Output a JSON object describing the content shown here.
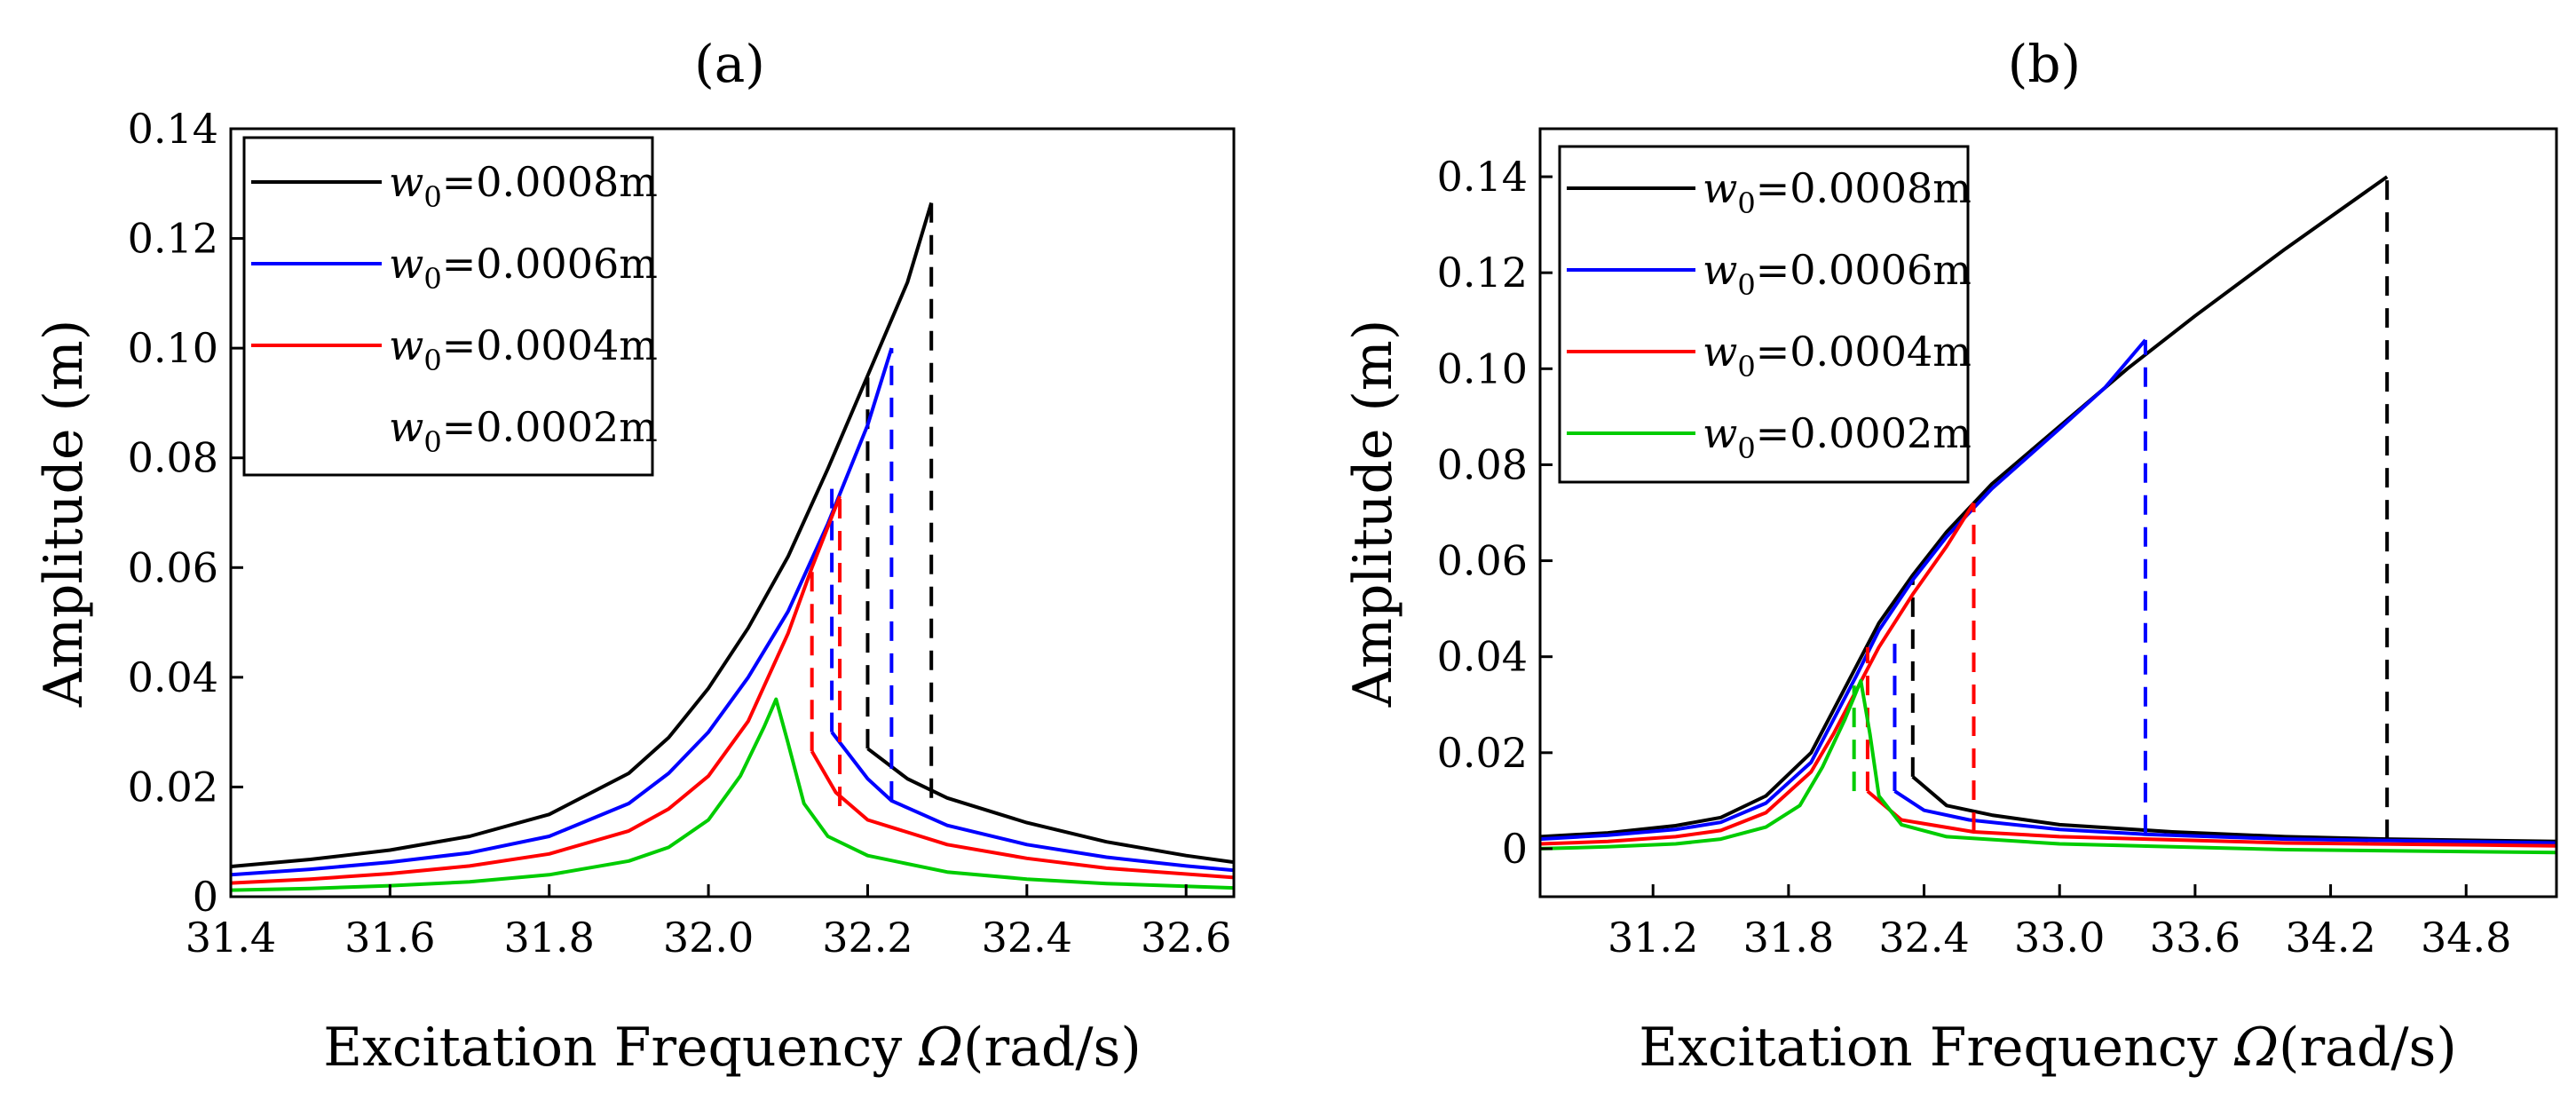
{
  "chart_data": [
    {
      "panel": "a",
      "type": "line",
      "title": "(a)",
      "xlabel_prefix": "Excitation Frequency ",
      "xlabel_symbol": "Ω",
      "xlabel_suffix": "(rad/s)",
      "ylabel": "Amplitude (m)",
      "xlim": [
        31.4,
        32.66
      ],
      "ylim": [
        0,
        0.14
      ],
      "xticks": [
        31.4,
        31.6,
        31.8,
        32.0,
        32.2,
        32.4,
        32.6
      ],
      "xtick_labels": [
        "31.4",
        "31.6",
        "31.8",
        "32.0",
        "32.2",
        "32.4",
        "32.6"
      ],
      "yticks": [
        0,
        0.02,
        0.04,
        0.06,
        0.08,
        0.1,
        0.12,
        0.14
      ],
      "ytick_labels": [
        "0",
        "0.02",
        "0.04",
        "0.06",
        "0.08",
        "0.10",
        "0.12",
        "0.14"
      ],
      "legend_position": "top-left",
      "series": [
        {
          "name": "w0=0.0008m",
          "label_var": "w",
          "label_sub": "0",
          "label_val": "=0.0008m",
          "color": "#000000",
          "upper": [
            [
              31.4,
              0.0055
            ],
            [
              31.5,
              0.0068
            ],
            [
              31.6,
              0.0085
            ],
            [
              31.7,
              0.011
            ],
            [
              31.8,
              0.015
            ],
            [
              31.9,
              0.0225
            ],
            [
              31.95,
              0.029
            ],
            [
              32.0,
              0.038
            ],
            [
              32.05,
              0.049
            ],
            [
              32.1,
              0.062
            ],
            [
              32.15,
              0.078
            ],
            [
              32.2,
              0.095
            ],
            [
              32.25,
              0.112
            ],
            [
              32.28,
              0.1265
            ]
          ],
          "lower": [
            [
              32.2,
              0.027
            ],
            [
              32.25,
              0.0215
            ],
            [
              32.3,
              0.018
            ],
            [
              32.4,
              0.0135
            ],
            [
              32.5,
              0.01
            ],
            [
              32.6,
              0.0075
            ],
            [
              32.66,
              0.0063
            ]
          ],
          "jumps": [
            [
              32.28,
              0.018,
              0.1265
            ],
            [
              32.2,
              0.027,
              0.095
            ]
          ]
        },
        {
          "name": "w0=0.0006m",
          "label_var": "w",
          "label_sub": "0",
          "label_val": "=0.0006m",
          "color": "#0000ff",
          "upper": [
            [
              31.4,
              0.004
            ],
            [
              31.5,
              0.005
            ],
            [
              31.6,
              0.0063
            ],
            [
              31.7,
              0.008
            ],
            [
              31.8,
              0.011
            ],
            [
              31.9,
              0.017
            ],
            [
              31.95,
              0.0225
            ],
            [
              32.0,
              0.03
            ],
            [
              32.05,
              0.04
            ],
            [
              32.1,
              0.052
            ],
            [
              32.15,
              0.068
            ],
            [
              32.2,
              0.086
            ],
            [
              32.23,
              0.1
            ]
          ],
          "lower": [
            [
              32.155,
              0.03
            ],
            [
              32.2,
              0.0215
            ],
            [
              32.23,
              0.0175
            ],
            [
              32.3,
              0.013
            ],
            [
              32.4,
              0.0095
            ],
            [
              32.5,
              0.0072
            ],
            [
              32.6,
              0.0056
            ],
            [
              32.66,
              0.0048
            ]
          ],
          "jumps": [
            [
              32.23,
              0.0175,
              0.1
            ],
            [
              32.155,
              0.03,
              0.076
            ]
          ]
        },
        {
          "name": "w0=0.0004m",
          "label_var": "w",
          "label_sub": "0",
          "label_val": "=0.0004m",
          "color": "#ff0000",
          "upper": [
            [
              31.4,
              0.0025
            ],
            [
              31.5,
              0.0032
            ],
            [
              31.6,
              0.0042
            ],
            [
              31.7,
              0.0056
            ],
            [
              31.8,
              0.0078
            ],
            [
              31.9,
              0.012
            ],
            [
              31.95,
              0.016
            ],
            [
              32.0,
              0.022
            ],
            [
              32.05,
              0.032
            ],
            [
              32.1,
              0.048
            ],
            [
              32.13,
              0.06
            ],
            [
              32.165,
              0.073
            ]
          ],
          "lower": [
            [
              32.13,
              0.0265
            ],
            [
              32.16,
              0.019
            ],
            [
              32.2,
              0.014
            ],
            [
              32.3,
              0.0095
            ],
            [
              32.4,
              0.007
            ],
            [
              32.5,
              0.0052
            ],
            [
              32.66,
              0.0035
            ]
          ],
          "jumps": [
            [
              32.165,
              0.0165,
              0.073
            ],
            [
              32.13,
              0.0265,
              0.06
            ]
          ]
        },
        {
          "name": "w0=0.0002m",
          "label_var": "w",
          "label_sub": "0",
          "label_val": "=0.0002m",
          "color": "#00cc00",
          "curve": [
            [
              31.4,
              0.0012
            ],
            [
              31.5,
              0.0015
            ],
            [
              31.6,
              0.002
            ],
            [
              31.7,
              0.0027
            ],
            [
              31.8,
              0.004
            ],
            [
              31.9,
              0.0065
            ],
            [
              31.95,
              0.009
            ],
            [
              32.0,
              0.014
            ],
            [
              32.04,
              0.022
            ],
            [
              32.07,
              0.031
            ],
            [
              32.085,
              0.036
            ],
            [
              32.1,
              0.028
            ],
            [
              32.12,
              0.017
            ],
            [
              32.15,
              0.011
            ],
            [
              32.2,
              0.0075
            ],
            [
              32.3,
              0.0045
            ],
            [
              32.4,
              0.0032
            ],
            [
              32.5,
              0.0024
            ],
            [
              32.66,
              0.0016
            ]
          ]
        }
      ]
    },
    {
      "panel": "b",
      "type": "line",
      "title": "(b)",
      "xlabel_prefix": "Excitation Frequency ",
      "xlabel_symbol": "Ω",
      "xlabel_suffix": "(rad/s)",
      "ylabel": "Amplitude (m)",
      "xlim": [
        30.7,
        35.2
      ],
      "ylim": [
        -0.01,
        0.15
      ],
      "xticks": [
        31.2,
        31.8,
        32.4,
        33.0,
        33.6,
        34.2,
        34.8
      ],
      "xtick_labels": [
        "31.2",
        "31.8",
        "32.4",
        "33.0",
        "33.6",
        "34.2",
        "34.8"
      ],
      "yticks": [
        0,
        0.02,
        0.04,
        0.06,
        0.08,
        0.1,
        0.12,
        0.14
      ],
      "ytick_labels": [
        "0",
        "0.02",
        "0.04",
        "0.06",
        "0.08",
        "0.10",
        "0.12",
        "0.14"
      ],
      "legend_position": "top-left",
      "series": [
        {
          "name": "w0=0.0008m",
          "label_var": "w",
          "label_sub": "0",
          "label_val": "=0.0008m",
          "color": "#000000",
          "upper": [
            [
              30.7,
              0.0025
            ],
            [
              31.0,
              0.0033
            ],
            [
              31.3,
              0.0048
            ],
            [
              31.5,
              0.0065
            ],
            [
              31.7,
              0.011
            ],
            [
              31.9,
              0.02
            ],
            [
              32.0,
              0.029
            ],
            [
              32.1,
              0.038
            ],
            [
              32.2,
              0.047
            ],
            [
              32.35,
              0.057
            ],
            [
              32.5,
              0.066
            ],
            [
              32.7,
              0.076
            ],
            [
              33.0,
              0.088
            ],
            [
              33.3,
              0.1
            ],
            [
              33.6,
              0.111
            ],
            [
              34.0,
              0.125
            ],
            [
              34.45,
              0.14
            ]
          ],
          "lower": [
            [
              32.35,
              0.015
            ],
            [
              32.5,
              0.009
            ],
            [
              32.7,
              0.007
            ],
            [
              33.0,
              0.005
            ],
            [
              33.5,
              0.0035
            ],
            [
              34.0,
              0.0025
            ],
            [
              34.45,
              0.002
            ],
            [
              35.2,
              0.0015
            ]
          ],
          "jumps": [
            [
              34.45,
              0.002,
              0.14
            ],
            [
              32.35,
              0.015,
              0.057
            ]
          ]
        },
        {
          "name": "w0=0.0006m",
          "label_var": "w",
          "label_sub": "0",
          "label_val": "=0.0006m",
          "color": "#0000ff",
          "upper": [
            [
              30.7,
              0.002
            ],
            [
              31.0,
              0.0028
            ],
            [
              31.3,
              0.004
            ],
            [
              31.5,
              0.0055
            ],
            [
              31.7,
              0.0095
            ],
            [
              31.9,
              0.018
            ],
            [
              32.0,
              0.027
            ],
            [
              32.1,
              0.036
            ],
            [
              32.2,
              0.0455
            ],
            [
              32.35,
              0.056
            ],
            [
              32.5,
              0.065
            ],
            [
              32.7,
              0.075
            ],
            [
              33.0,
              0.0875
            ],
            [
              33.2,
              0.096
            ],
            [
              33.38,
              0.106
            ]
          ],
          "lower": [
            [
              32.27,
              0.012
            ],
            [
              32.4,
              0.008
            ],
            [
              32.6,
              0.006
            ],
            [
              33.0,
              0.004
            ],
            [
              33.38,
              0.003
            ],
            [
              34.0,
              0.002
            ],
            [
              35.2,
              0.0012
            ]
          ],
          "jumps": [
            [
              33.38,
              0.003,
              0.106
            ],
            [
              32.27,
              0.012,
              0.045
            ]
          ]
        },
        {
          "name": "w0=0.0004m",
          "label_var": "w",
          "label_sub": "0",
          "label_val": "=0.0004m",
          "color": "#ff0000",
          "upper": [
            [
              30.7,
              0.001
            ],
            [
              31.0,
              0.0015
            ],
            [
              31.3,
              0.0025
            ],
            [
              31.5,
              0.0038
            ],
            [
              31.7,
              0.0075
            ],
            [
              31.9,
              0.016
            ],
            [
              32.0,
              0.024
            ],
            [
              32.1,
              0.033
            ],
            [
              32.2,
              0.042
            ],
            [
              32.35,
              0.053
            ],
            [
              32.5,
              0.063
            ],
            [
              32.62,
              0.072
            ]
          ],
          "lower": [
            [
              32.15,
              0.012
            ],
            [
              32.3,
              0.006
            ],
            [
              32.62,
              0.0035
            ],
            [
              33.0,
              0.0025
            ],
            [
              34.0,
              0.0012
            ],
            [
              35.2,
              0.0006
            ]
          ],
          "jumps": [
            [
              32.62,
              0.0035,
              0.072
            ],
            [
              32.15,
              0.012,
              0.042
            ]
          ]
        },
        {
          "name": "w0=0.0002m",
          "label_var": "w",
          "label_sub": "0",
          "label_val": "=0.0002m",
          "color": "#00cc00",
          "curve": [
            [
              30.7,
              0.0
            ],
            [
              31.0,
              0.0004
            ],
            [
              31.3,
              0.001
            ],
            [
              31.5,
              0.002
            ],
            [
              31.7,
              0.0045
            ],
            [
              31.85,
              0.009
            ],
            [
              31.95,
              0.017
            ],
            [
              32.05,
              0.027
            ],
            [
              32.12,
              0.035
            ],
            [
              32.16,
              0.024
            ],
            [
              32.2,
              0.011
            ],
            [
              32.3,
              0.005
            ],
            [
              32.5,
              0.0025
            ],
            [
              33.0,
              0.001
            ],
            [
              34.0,
              -0.0002
            ],
            [
              35.2,
              -0.0008
            ]
          ],
          "jumps": [
            [
              32.09,
              0.012,
              0.034
            ]
          ]
        }
      ]
    }
  ]
}
